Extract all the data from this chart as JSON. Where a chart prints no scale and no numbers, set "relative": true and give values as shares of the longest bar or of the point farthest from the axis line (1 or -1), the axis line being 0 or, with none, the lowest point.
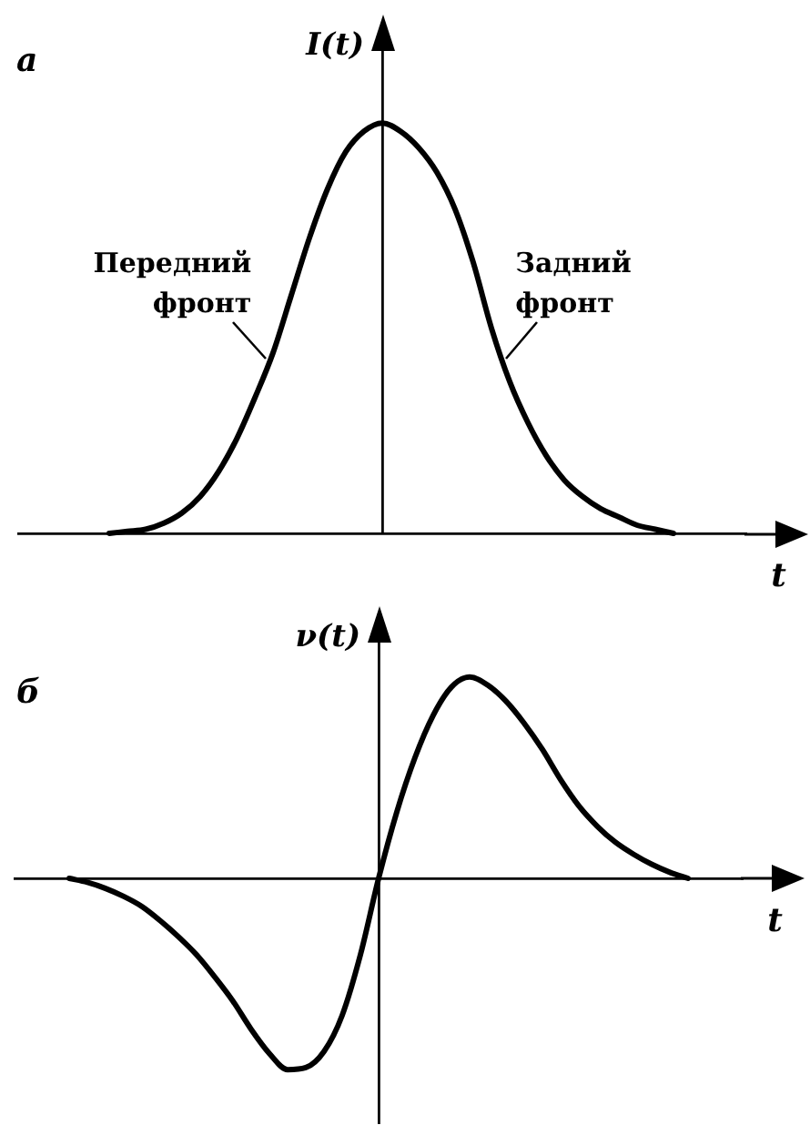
{
  "chart_data": [
    {
      "type": "line",
      "title": "а",
      "ylabel": "I(t)",
      "xlabel": "t",
      "annotations": [
        "Передний фронт",
        "Задний фронт"
      ],
      "relative": true,
      "categories": [
        null,
        null,
        null,
        null,
        null,
        null,
        null,
        null,
        null,
        null,
        null,
        null,
        null,
        null,
        null,
        null,
        null,
        null,
        null,
        null,
        null,
        null,
        null,
        null,
        null,
        null,
        null,
        null,
        null,
        null,
        null,
        null,
        null,
        null,
        null,
        null,
        null,
        null,
        null,
        null,
        null
      ],
      "series": [
        {
          "color": "#000000",
          "values": [
            null,
            null,
            null,
            null,
            null,
            0,
            0.005,
            0.01,
            0.025,
            0.05,
            0.09,
            0.15,
            0.23,
            0.33,
            0.44,
            0.58,
            0.72,
            0.84,
            0.93,
            0.98,
            1.0,
            0.98,
            0.94,
            0.88,
            0.79,
            0.66,
            0.5,
            0.37,
            0.27,
            0.19,
            0.13,
            0.09,
            0.06,
            0.04,
            0.02,
            0.01,
            0,
            null,
            null,
            null,
            null
          ]
        }
      ]
    },
    {
      "type": "line",
      "title": "б",
      "ylabel": "ν(t)",
      "xlabel": "t",
      "relative": true,
      "categories": [
        null,
        null,
        null,
        null,
        null,
        null,
        null,
        null,
        null,
        null,
        null,
        null,
        null,
        null,
        null,
        null,
        null,
        null,
        null,
        null,
        null,
        null,
        null,
        null,
        null,
        null,
        null,
        null,
        null,
        null,
        null,
        null,
        null,
        null,
        null,
        null,
        null,
        null,
        null,
        null,
        null
      ],
      "series": [
        {
          "color": "#000000",
          "values": [
            null,
            null,
            null,
            0,
            -0.02,
            -0.05,
            -0.09,
            -0.14,
            -0.21,
            -0.29,
            -0.38,
            -0.49,
            -0.61,
            -0.75,
            -0.87,
            -0.95,
            -0.94,
            -0.86,
            -0.68,
            -0.38,
            0,
            0.33,
            0.6,
            0.81,
            0.95,
            1.0,
            0.96,
            0.88,
            0.77,
            0.64,
            0.49,
            0.36,
            0.26,
            0.18,
            0.12,
            0.07,
            0.03,
            0,
            null,
            null,
            null
          ]
        }
      ]
    }
  ]
}
